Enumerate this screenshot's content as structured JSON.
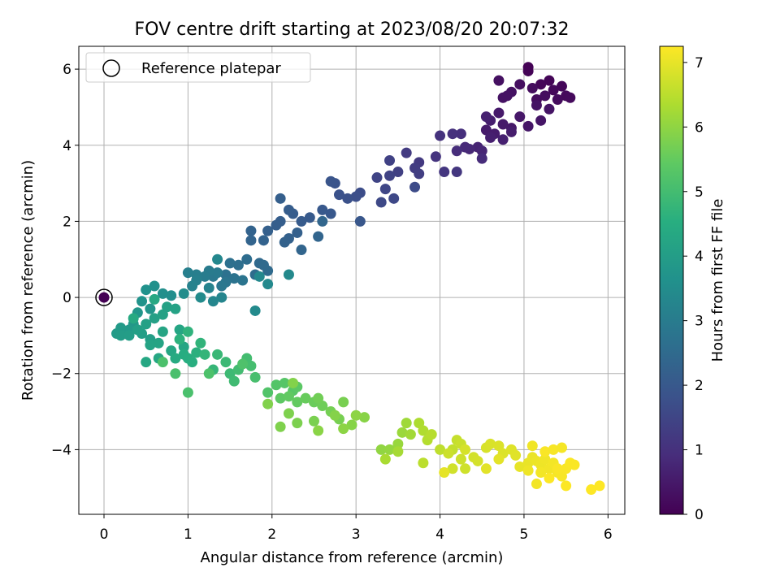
{
  "chart_data": {
    "type": "scatter",
    "title": "FOV centre drift starting at 2023/08/20 20:07:32",
    "xlabel": "Angular distance from reference (arcmin)",
    "ylabel": "Rotation from reference (arcmin)",
    "xlim": [
      -0.3,
      6.2
    ],
    "ylim": [
      -5.7,
      6.6
    ],
    "x_ticks": [
      0,
      1,
      2,
      3,
      4,
      5,
      6
    ],
    "y_ticks": [
      -4,
      -2,
      0,
      2,
      4,
      6
    ],
    "grid": true,
    "legend": {
      "position": "top-left",
      "entries": [
        "Reference platepar"
      ]
    },
    "reference_point": {
      "x": 0,
      "y": 0
    },
    "colorbar": {
      "label": "Hours from first FF file",
      "colormap": "viridis",
      "range": [
        0,
        7.25
      ],
      "ticks": [
        0,
        1,
        2,
        3,
        4,
        5,
        6,
        7
      ]
    },
    "points": [
      [
        5.05,
        6.05,
        0.02
      ],
      [
        5.05,
        5.95,
        0.05
      ],
      [
        5.3,
        5.7,
        0.08
      ],
      [
        5.2,
        5.6,
        0.1
      ],
      [
        5.45,
        5.55,
        0.12
      ],
      [
        5.35,
        5.45,
        0.14
      ],
      [
        5.5,
        5.3,
        0.16
      ],
      [
        5.55,
        5.25,
        0.18
      ],
      [
        5.4,
        5.2,
        0.2
      ],
      [
        5.15,
        5.2,
        0.22
      ],
      [
        5.1,
        5.5,
        0.24
      ],
      [
        5.25,
        5.3,
        0.26
      ],
      [
        4.95,
        5.6,
        0.28
      ],
      [
        4.7,
        5.7,
        0.3
      ],
      [
        4.85,
        5.4,
        0.32
      ],
      [
        4.75,
        5.25,
        0.34
      ],
      [
        4.8,
        5.3,
        0.36
      ],
      [
        5.15,
        5.05,
        0.38
      ],
      [
        5.3,
        4.95,
        0.4
      ],
      [
        5.2,
        4.65,
        0.42
      ],
      [
        5.05,
        4.5,
        0.44
      ],
      [
        4.95,
        4.75,
        0.46
      ],
      [
        4.85,
        4.45,
        0.48
      ],
      [
        4.7,
        4.85,
        0.5
      ],
      [
        4.75,
        4.55,
        0.52
      ],
      [
        4.55,
        4.4,
        0.54
      ],
      [
        4.65,
        4.3,
        0.56
      ],
      [
        4.85,
        4.35,
        0.58
      ],
      [
        4.6,
        4.65,
        0.6
      ],
      [
        4.6,
        4.2,
        0.62
      ],
      [
        4.75,
        4.15,
        0.64
      ],
      [
        4.55,
        4.75,
        0.66
      ],
      [
        4.45,
        3.95,
        0.72
      ],
      [
        4.5,
        3.85,
        0.76
      ],
      [
        4.35,
        3.9,
        0.8
      ],
      [
        4.3,
        3.95,
        0.84
      ],
      [
        4.5,
        3.65,
        0.88
      ],
      [
        4.2,
        3.85,
        0.92
      ],
      [
        4.25,
        4.3,
        0.96
      ],
      [
        4.15,
        4.3,
        1.0
      ],
      [
        4.0,
        4.25,
        1.04
      ],
      [
        3.95,
        3.7,
        1.08
      ],
      [
        4.05,
        3.3,
        1.12
      ],
      [
        4.2,
        3.3,
        1.16
      ],
      [
        3.75,
        3.55,
        1.2
      ],
      [
        3.6,
        3.8,
        1.24
      ],
      [
        3.7,
        3.4,
        1.28
      ],
      [
        3.75,
        3.25,
        1.32
      ],
      [
        3.5,
        3.3,
        1.36
      ],
      [
        3.4,
        3.6,
        1.4
      ],
      [
        3.4,
        3.2,
        1.44
      ],
      [
        3.25,
        3.15,
        1.48
      ],
      [
        3.35,
        2.85,
        1.52
      ],
      [
        3.45,
        2.6,
        1.56
      ],
      [
        3.3,
        2.5,
        1.6
      ],
      [
        3.7,
        2.9,
        1.64
      ],
      [
        3.05,
        2.75,
        1.7
      ],
      [
        3.0,
        2.65,
        1.74
      ],
      [
        2.9,
        2.6,
        1.78
      ],
      [
        2.8,
        2.7,
        1.82
      ],
      [
        2.75,
        3.0,
        1.86
      ],
      [
        2.7,
        3.05,
        1.9
      ],
      [
        3.05,
        2.0,
        1.94
      ],
      [
        2.7,
        2.2,
        1.98
      ],
      [
        2.6,
        2.3,
        2.0
      ],
      [
        2.45,
        2.1,
        2.04
      ],
      [
        2.35,
        2.0,
        2.08
      ],
      [
        2.25,
        2.2,
        2.1
      ],
      [
        2.2,
        2.3,
        2.12
      ],
      [
        2.1,
        2.0,
        2.14
      ],
      [
        2.05,
        1.9,
        2.16
      ],
      [
        2.1,
        2.6,
        2.18
      ],
      [
        1.95,
        1.75,
        2.2
      ],
      [
        2.3,
        1.7,
        2.22
      ],
      [
        2.2,
        1.55,
        2.24
      ],
      [
        2.15,
        1.45,
        2.26
      ],
      [
        1.9,
        1.5,
        2.28
      ],
      [
        1.75,
        1.75,
        2.3
      ],
      [
        1.75,
        1.5,
        2.32
      ],
      [
        2.35,
        1.25,
        2.34
      ],
      [
        2.55,
        1.6,
        2.36
      ],
      [
        2.6,
        2.0,
        2.38
      ],
      [
        1.85,
        0.9,
        2.45
      ],
      [
        1.9,
        0.85,
        2.48
      ],
      [
        1.95,
        0.7,
        2.5
      ],
      [
        1.8,
        0.6,
        2.54
      ],
      [
        1.7,
        1.0,
        2.58
      ],
      [
        1.6,
        0.85,
        2.62
      ],
      [
        1.5,
        0.9,
        2.66
      ],
      [
        1.45,
        0.6,
        2.7
      ],
      [
        1.55,
        0.5,
        2.74
      ],
      [
        1.65,
        0.45,
        2.78
      ],
      [
        1.45,
        0.4,
        2.82
      ],
      [
        1.4,
        0.3,
        2.86
      ],
      [
        1.3,
        0.55,
        2.9
      ],
      [
        1.35,
        0.65,
        2.94
      ],
      [
        1.25,
        0.7,
        2.98
      ],
      [
        1.2,
        0.55,
        3.02
      ],
      [
        1.1,
        0.6,
        3.06
      ],
      [
        1.0,
        0.65,
        3.1
      ],
      [
        1.1,
        0.45,
        3.14
      ],
      [
        1.05,
        0.3,
        3.18
      ],
      [
        1.25,
        0.25,
        3.22
      ],
      [
        1.4,
        0.0,
        3.26
      ],
      [
        1.3,
        -0.1,
        3.3
      ],
      [
        1.35,
        1.0,
        3.34
      ],
      [
        1.85,
        0.55,
        3.36
      ],
      [
        1.95,
        0.35,
        3.38
      ],
      [
        2.2,
        0.6,
        3.4
      ],
      [
        1.8,
        -0.35,
        3.42
      ],
      [
        1.15,
        0.0,
        3.44
      ],
      [
        0.95,
        0.1,
        3.5
      ],
      [
        0.8,
        0.05,
        3.54
      ],
      [
        0.7,
        0.1,
        3.58
      ],
      [
        0.6,
        0.3,
        3.62
      ],
      [
        0.5,
        0.2,
        3.66
      ],
      [
        0.45,
        -0.1,
        3.7
      ],
      [
        0.55,
        -0.3,
        3.74
      ],
      [
        0.4,
        -0.4,
        3.78
      ],
      [
        0.35,
        -0.7,
        3.82
      ],
      [
        0.3,
        -0.85,
        3.86
      ],
      [
        0.2,
        -0.8,
        3.9
      ],
      [
        0.15,
        -0.95,
        3.94
      ],
      [
        0.2,
        -1.0,
        3.98
      ],
      [
        0.3,
        -1.0,
        4.0
      ],
      [
        0.45,
        -0.95,
        4.02
      ],
      [
        0.55,
        -1.1,
        4.04
      ],
      [
        0.4,
        -0.85,
        4.06
      ],
      [
        0.5,
        -0.7,
        4.08
      ],
      [
        0.6,
        -0.55,
        4.1
      ],
      [
        0.7,
        -0.45,
        4.12
      ],
      [
        0.75,
        -0.25,
        4.14
      ],
      [
        0.85,
        -0.3,
        4.16
      ],
      [
        0.55,
        -1.25,
        4.18
      ],
      [
        0.65,
        -1.2,
        4.2
      ],
      [
        0.7,
        -0.9,
        4.22
      ],
      [
        0.9,
        -0.85,
        4.24
      ],
      [
        0.95,
        -1.3,
        4.26
      ],
      [
        0.8,
        -1.4,
        4.28
      ],
      [
        0.65,
        -1.6,
        4.3
      ],
      [
        0.5,
        -1.7,
        4.32
      ],
      [
        0.6,
        -0.05,
        4.34
      ],
      [
        0.35,
        -0.55,
        4.36
      ],
      [
        0.85,
        -1.6,
        4.42
      ],
      [
        0.95,
        -1.5,
        4.46
      ],
      [
        1.0,
        -1.6,
        4.5
      ],
      [
        1.05,
        -1.7,
        4.54
      ],
      [
        1.1,
        -1.45,
        4.58
      ],
      [
        0.9,
        -1.1,
        4.62
      ],
      [
        1.0,
        -0.9,
        4.66
      ],
      [
        1.15,
        -1.2,
        4.7
      ],
      [
        1.2,
        -1.5,
        4.74
      ],
      [
        1.3,
        -1.9,
        4.78
      ],
      [
        1.35,
        -1.5,
        4.82
      ],
      [
        1.45,
        -1.7,
        4.86
      ],
      [
        1.5,
        -2.0,
        4.9
      ],
      [
        1.55,
        -2.2,
        4.94
      ],
      [
        1.6,
        -1.9,
        4.98
      ],
      [
        1.7,
        -1.6,
        5.0
      ],
      [
        1.75,
        -1.8,
        5.04
      ],
      [
        1.8,
        -2.1,
        5.08
      ],
      [
        0.85,
        -2.0,
        5.1
      ],
      [
        1.0,
        -2.5,
        5.12
      ],
      [
        0.7,
        -1.7,
        5.14
      ],
      [
        1.25,
        -2.0,
        5.16
      ],
      [
        1.65,
        -1.75,
        5.18
      ],
      [
        1.95,
        -2.5,
        5.22
      ],
      [
        2.05,
        -2.3,
        5.26
      ],
      [
        2.15,
        -2.25,
        5.3
      ],
      [
        2.25,
        -2.45,
        5.34
      ],
      [
        2.3,
        -2.35,
        5.38
      ],
      [
        2.1,
        -2.65,
        5.42
      ],
      [
        2.2,
        -2.6,
        5.46
      ],
      [
        2.3,
        -2.75,
        5.5
      ],
      [
        2.4,
        -2.65,
        5.54
      ],
      [
        2.5,
        -2.75,
        5.58
      ],
      [
        2.6,
        -2.85,
        5.62
      ],
      [
        2.55,
        -2.65,
        5.66
      ],
      [
        2.7,
        -3.0,
        5.7
      ],
      [
        2.8,
        -3.2,
        5.72
      ],
      [
        2.85,
        -2.75,
        5.74
      ],
      [
        2.5,
        -3.25,
        5.76
      ],
      [
        2.3,
        -3.3,
        5.78
      ],
      [
        2.2,
        -3.05,
        5.8
      ],
      [
        2.1,
        -3.4,
        5.82
      ],
      [
        1.95,
        -2.8,
        5.84
      ],
      [
        2.25,
        -2.25,
        5.86
      ],
      [
        2.75,
        -3.1,
        5.88
      ],
      [
        2.95,
        -3.35,
        5.9
      ],
      [
        3.1,
        -3.15,
        5.92
      ],
      [
        2.55,
        -3.5,
        5.94
      ],
      [
        2.85,
        -3.45,
        5.96
      ],
      [
        3.0,
        -3.1,
        5.98
      ],
      [
        3.3,
        -4.0,
        6.02
      ],
      [
        3.4,
        -4.0,
        6.06
      ],
      [
        3.5,
        -3.85,
        6.1
      ],
      [
        3.55,
        -3.55,
        6.14
      ],
      [
        3.6,
        -3.3,
        6.18
      ],
      [
        3.65,
        -3.6,
        6.22
      ],
      [
        3.5,
        -4.05,
        6.26
      ],
      [
        3.35,
        -4.25,
        6.3
      ],
      [
        3.75,
        -3.3,
        6.34
      ],
      [
        3.8,
        -3.5,
        6.38
      ],
      [
        3.85,
        -3.75,
        6.42
      ],
      [
        3.9,
        -3.6,
        6.46
      ],
      [
        3.8,
        -4.35,
        6.5
      ],
      [
        4.0,
        -4.0,
        6.54
      ],
      [
        4.15,
        -4.0,
        6.58
      ],
      [
        4.2,
        -3.75,
        6.62
      ],
      [
        4.25,
        -3.85,
        6.66
      ],
      [
        4.1,
        -4.1,
        6.68
      ],
      [
        4.25,
        -4.25,
        6.7
      ],
      [
        4.3,
        -4.5,
        6.72
      ],
      [
        4.15,
        -4.5,
        6.74
      ],
      [
        4.4,
        -4.2,
        6.76
      ],
      [
        4.45,
        -4.3,
        6.78
      ],
      [
        4.3,
        -4.0,
        6.8
      ],
      [
        4.55,
        -3.95,
        6.82
      ],
      [
        4.6,
        -3.85,
        6.84
      ],
      [
        4.7,
        -3.9,
        6.86
      ],
      [
        4.75,
        -4.1,
        6.88
      ],
      [
        4.85,
        -4.0,
        6.9
      ],
      [
        4.9,
        -4.15,
        6.92
      ],
      [
        4.55,
        -4.5,
        6.94
      ],
      [
        4.7,
        -4.25,
        6.96
      ],
      [
        4.05,
        -4.6,
        6.98
      ],
      [
        4.95,
        -4.45,
        7.0
      ],
      [
        5.05,
        -4.35,
        7.02
      ],
      [
        5.1,
        -4.2,
        7.04
      ],
      [
        5.15,
        -4.3,
        7.06
      ],
      [
        5.2,
        -4.4,
        7.08
      ],
      [
        5.25,
        -4.25,
        7.1
      ],
      [
        5.3,
        -4.5,
        7.12
      ],
      [
        5.35,
        -4.35,
        7.14
      ],
      [
        5.4,
        -4.6,
        7.16
      ],
      [
        5.45,
        -4.7,
        7.18
      ],
      [
        5.5,
        -4.5,
        7.2
      ],
      [
        5.55,
        -4.35,
        7.22
      ],
      [
        5.6,
        -4.4,
        7.22
      ],
      [
        5.25,
        -4.05,
        7.2
      ],
      [
        5.35,
        -4.0,
        7.18
      ],
      [
        5.45,
        -3.95,
        7.16
      ],
      [
        5.2,
        -4.6,
        7.14
      ],
      [
        5.15,
        -4.9,
        7.12
      ],
      [
        5.1,
        -3.9,
        7.1
      ],
      [
        5.05,
        -4.55,
        7.08
      ],
      [
        5.3,
        -4.75,
        7.24
      ],
      [
        5.5,
        -4.95,
        7.24
      ],
      [
        5.8,
        -5.05,
        7.25
      ],
      [
        5.9,
        -4.95,
        7.25
      ],
      [
        5.4,
        -4.5,
        7.2
      ]
    ]
  }
}
